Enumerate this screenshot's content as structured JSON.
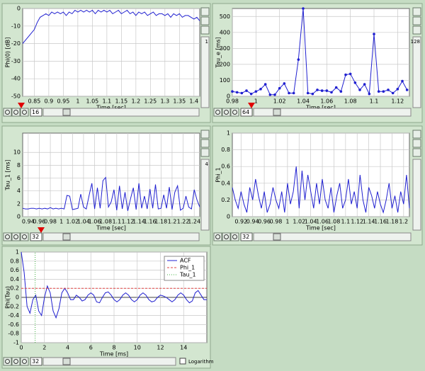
{
  "chart_data": [
    {
      "type": "line",
      "ylabel": "Phi(0) [dB]",
      "xlabel": "Time [sec]",
      "color": "#2020d0",
      "grid": true,
      "xlim": [
        0.81,
        1.42
      ],
      "ylim": [
        -50,
        0
      ],
      "xticks": [
        0.85,
        0.9,
        0.95,
        1,
        1.05,
        1.1,
        1.15,
        1.2,
        1.25,
        1.3,
        1.35,
        1.4
      ],
      "yticks": [
        0,
        -10,
        -20,
        -30,
        -40,
        -50
      ],
      "x": [
        0.81,
        0.82,
        0.83,
        0.84,
        0.85,
        0.86,
        0.87,
        0.88,
        0.89,
        0.9,
        0.91,
        0.92,
        0.93,
        0.94,
        0.95,
        0.96,
        0.97,
        0.98,
        0.99,
        1,
        1.01,
        1.02,
        1.03,
        1.04,
        1.05,
        1.06,
        1.07,
        1.08,
        1.09,
        1.1,
        1.11,
        1.12,
        1.13,
        1.14,
        1.15,
        1.16,
        1.17,
        1.18,
        1.19,
        1.2,
        1.21,
        1.22,
        1.23,
        1.24,
        1.25,
        1.26,
        1.27,
        1.28,
        1.29,
        1.3,
        1.31,
        1.32,
        1.33,
        1.34,
        1.35,
        1.36,
        1.37,
        1.38,
        1.39,
        1.4,
        1.41,
        1.42
      ],
      "values": [
        -20,
        -18,
        -16,
        -14,
        -12,
        -8,
        -5,
        -4,
        -3,
        -4,
        -2,
        -3,
        -2,
        -3,
        -2,
        -4,
        -2,
        -3,
        -1,
        -2,
        -1,
        -2,
        -1,
        -2,
        -1,
        -3,
        -1,
        -2,
        -1,
        -2,
        -1,
        -3,
        -2,
        -1,
        -3,
        -2,
        -1,
        -3,
        -2,
        -4,
        -2,
        -3,
        -2,
        -4,
        -3,
        -2,
        -4,
        -3,
        -3,
        -4,
        -3,
        -5,
        -3,
        -4,
        -3,
        -5,
        -4,
        -4,
        -5,
        -6,
        -5,
        -7
      ]
    },
    {
      "type": "line",
      "ylabel": "Tau_e [ms]",
      "xlabel": "Time [sec]",
      "color": "#2020d0",
      "markers": true,
      "grid": true,
      "xlim": [
        0.98,
        1.13
      ],
      "ylim": [
        0,
        550
      ],
      "xticks": [
        0.98,
        1,
        1.02,
        1.04,
        1.06,
        1.08,
        1.1,
        1.12
      ],
      "yticks": [
        0,
        100,
        200,
        300,
        400,
        500
      ],
      "x": [
        0.98,
        0.984,
        0.988,
        0.992,
        0.996,
        1,
        1.004,
        1.008,
        1.012,
        1.016,
        1.02,
        1.024,
        1.028,
        1.032,
        1.036,
        1.04,
        1.044,
        1.048,
        1.052,
        1.056,
        1.06,
        1.064,
        1.068,
        1.072,
        1.076,
        1.08,
        1.084,
        1.088,
        1.092,
        1.096,
        1.1,
        1.104,
        1.108,
        1.112,
        1.116,
        1.12,
        1.124,
        1.128
      ],
      "values": [
        30,
        25,
        20,
        35,
        15,
        30,
        45,
        75,
        10,
        10,
        50,
        80,
        20,
        20,
        230,
        550,
        20,
        15,
        40,
        35,
        35,
        25,
        55,
        30,
        135,
        140,
        85,
        40,
        75,
        15,
        390,
        30,
        30,
        40,
        20,
        45,
        95,
        40
      ]
    },
    {
      "type": "line",
      "ylabel": "Tau_1 [ms]",
      "xlabel": "Time [sec]",
      "color": "#2020d0",
      "grid": true,
      "xlim": [
        0.93,
        1.25
      ],
      "ylim": [
        0,
        13
      ],
      "xticks": [
        0.94,
        0.96,
        0.98,
        1,
        1.02,
        1.04,
        1.06,
        1.08,
        1.1,
        1.12,
        1.14,
        1.16,
        1.18,
        1.2,
        1.22,
        1.24
      ],
      "yticks": [
        0,
        2,
        4,
        6,
        8,
        10
      ],
      "x": [
        0.93,
        0.935,
        0.94,
        0.945,
        0.95,
        0.955,
        0.96,
        0.965,
        0.97,
        0.975,
        0.98,
        0.985,
        0.99,
        0.995,
        1,
        1.005,
        1.01,
        1.015,
        1.02,
        1.025,
        1.03,
        1.035,
        1.04,
        1.045,
        1.05,
        1.055,
        1.06,
        1.065,
        1.07,
        1.075,
        1.08,
        1.085,
        1.09,
        1.095,
        1.1,
        1.105,
        1.11,
        1.115,
        1.12,
        1.125,
        1.13,
        1.135,
        1.14,
        1.145,
        1.15,
        1.155,
        1.16,
        1.165,
        1.17,
        1.175,
        1.18,
        1.185,
        1.19,
        1.195,
        1.2,
        1.205,
        1.21,
        1.215,
        1.22,
        1.225,
        1.23,
        1.235,
        1.24,
        1.245,
        1.25
      ],
      "values": [
        1.3,
        1.2,
        1.2,
        1.3,
        1.3,
        1.2,
        1.3,
        1.2,
        1.3,
        1.2,
        1.4,
        1.2,
        1.3,
        1.2,
        1.3,
        1.2,
        3.3,
        3.2,
        1.1,
        1.2,
        1.3,
        3.5,
        1.5,
        1.2,
        3.3,
        5.2,
        1.2,
        4.5,
        1.3,
        5.6,
        6.1,
        1.5,
        2.3,
        4.2,
        1.0,
        4.8,
        1.2,
        3.8,
        0.9,
        2.8,
        4.5,
        1.1,
        5.2,
        1.3,
        3.2,
        1.2,
        4.3,
        1.3,
        5.0,
        1.2,
        1.3,
        3.4,
        1.3,
        4.6,
        1.1,
        3.8,
        4.8,
        1.0,
        1.3,
        3.2,
        1.5,
        1.2,
        4.2,
        2.6,
        1.5
      ]
    },
    {
      "type": "line",
      "ylabel": "Phi_1",
      "xlabel": "Time [sec]",
      "color": "#2020d0",
      "grid": true,
      "xlim": [
        0.905,
        1.21
      ],
      "ylim": [
        0,
        1
      ],
      "xticks": [
        0.92,
        0.94,
        0.96,
        0.98,
        1,
        1.02,
        1.04,
        1.06,
        1.08,
        1.1,
        1.12,
        1.14,
        1.16,
        1.18,
        1.2
      ],
      "yticks": [
        0,
        0.2,
        0.4,
        0.6,
        0.8,
        1
      ],
      "x": [
        0.905,
        0.91,
        0.915,
        0.92,
        0.925,
        0.93,
        0.935,
        0.94,
        0.945,
        0.95,
        0.955,
        0.96,
        0.965,
        0.97,
        0.975,
        0.98,
        0.985,
        0.99,
        0.995,
        1,
        1.005,
        1.01,
        1.015,
        1.02,
        1.025,
        1.03,
        1.035,
        1.04,
        1.045,
        1.05,
        1.055,
        1.06,
        1.065,
        1.07,
        1.075,
        1.08,
        1.085,
        1.09,
        1.095,
        1.1,
        1.105,
        1.11,
        1.115,
        1.12,
        1.125,
        1.13,
        1.135,
        1.14,
        1.145,
        1.15,
        1.155,
        1.16,
        1.165,
        1.17,
        1.175,
        1.18,
        1.185,
        1.19,
        1.195,
        1.2,
        1.205,
        1.21
      ],
      "values": [
        0.35,
        0.2,
        0.1,
        0.3,
        0.15,
        0.05,
        0.35,
        0.2,
        0.45,
        0.25,
        0.1,
        0.3,
        0.05,
        0.15,
        0.35,
        0.2,
        0.1,
        0.3,
        0.05,
        0.4,
        0.15,
        0.3,
        0.6,
        0.1,
        0.55,
        0.2,
        0.5,
        0.3,
        0.1,
        0.4,
        0.15,
        0.45,
        0.2,
        0.1,
        0.35,
        0.05,
        0.25,
        0.4,
        0.1,
        0.2,
        0.45,
        0.15,
        0.3,
        0.1,
        0.5,
        0.2,
        0.05,
        0.35,
        0.25,
        0.1,
        0.3,
        0.15,
        0.05,
        0.2,
        0.4,
        0.1,
        0.25,
        0.05,
        0.3,
        0.15,
        0.5,
        0.1
      ]
    },
    {
      "type": "line",
      "ylabel": "Phi(Tau)",
      "xlabel": "Time [ms]",
      "grid": true,
      "legend": "upper right",
      "xlim": [
        0,
        16
      ],
      "ylim": [
        -1,
        1
      ],
      "xticks": [
        0,
        2,
        4,
        6,
        8,
        10,
        12,
        14
      ],
      "yticks": [
        1,
        0.8,
        0.6,
        0.4,
        0.2,
        0,
        -0.2,
        -0.4,
        -0.6,
        -0.8,
        -1
      ],
      "series": [
        {
          "name": "ACF",
          "color": "#2020d0",
          "style": "solid",
          "x": [
            0,
            0.25,
            0.5,
            0.75,
            1,
            1.25,
            1.5,
            1.75,
            2,
            2.25,
            2.5,
            2.75,
            3,
            3.25,
            3.5,
            3.75,
            4,
            4.25,
            4.5,
            4.75,
            5,
            5.25,
            5.5,
            5.75,
            6,
            6.25,
            6.5,
            6.75,
            7,
            7.25,
            7.5,
            7.75,
            8,
            8.25,
            8.5,
            8.75,
            9,
            9.25,
            9.5,
            9.75,
            10,
            10.25,
            10.5,
            10.75,
            11,
            11.25,
            11.5,
            11.75,
            12,
            12.25,
            12.5,
            12.75,
            13,
            13.25,
            13.5,
            13.75,
            14,
            14.25,
            14.5,
            14.75,
            15,
            15.25,
            15.5,
            15.75,
            16
          ],
          "values": [
            1.0,
            0.55,
            -0.2,
            -0.35,
            -0.05,
            0.05,
            -0.3,
            -0.4,
            0.0,
            0.25,
            0.1,
            -0.3,
            -0.45,
            -0.25,
            0.1,
            0.2,
            0.1,
            -0.05,
            -0.05,
            0.05,
            0.0,
            -0.08,
            -0.05,
            0.05,
            0.1,
            0.05,
            -0.1,
            -0.12,
            0.0,
            0.1,
            0.12,
            0.05,
            -0.05,
            -0.1,
            -0.05,
            0.05,
            0.1,
            0.05,
            -0.05,
            -0.1,
            -0.05,
            0.05,
            0.1,
            0.05,
            -0.05,
            -0.1,
            -0.08,
            0.0,
            0.05,
            0.03,
            0.0,
            -0.05,
            -0.1,
            -0.05,
            0.05,
            0.1,
            0.05,
            -0.05,
            -0.12,
            -0.08,
            0.1,
            0.15,
            0.05,
            -0.05,
            -0.05
          ]
        },
        {
          "name": "Phi_1",
          "color": "#e04040",
          "style": "dashed",
          "x": [
            0,
            16
          ],
          "values": [
            0.2,
            0.2
          ]
        },
        {
          "name": "Tau_1",
          "color": "#40b040",
          "style": "dotted",
          "x": [
            1.2,
            1.2
          ],
          "values": [
            -1,
            1
          ]
        }
      ]
    }
  ],
  "panels": [
    {
      "zoom": "16",
      "side": "1"
    },
    {
      "zoom": "64",
      "side": "128"
    },
    {
      "zoom": "32",
      "side": "4"
    },
    {
      "zoom": "32"
    },
    {
      "zoom": "32"
    }
  ],
  "logarithm_label": "Logarithm"
}
